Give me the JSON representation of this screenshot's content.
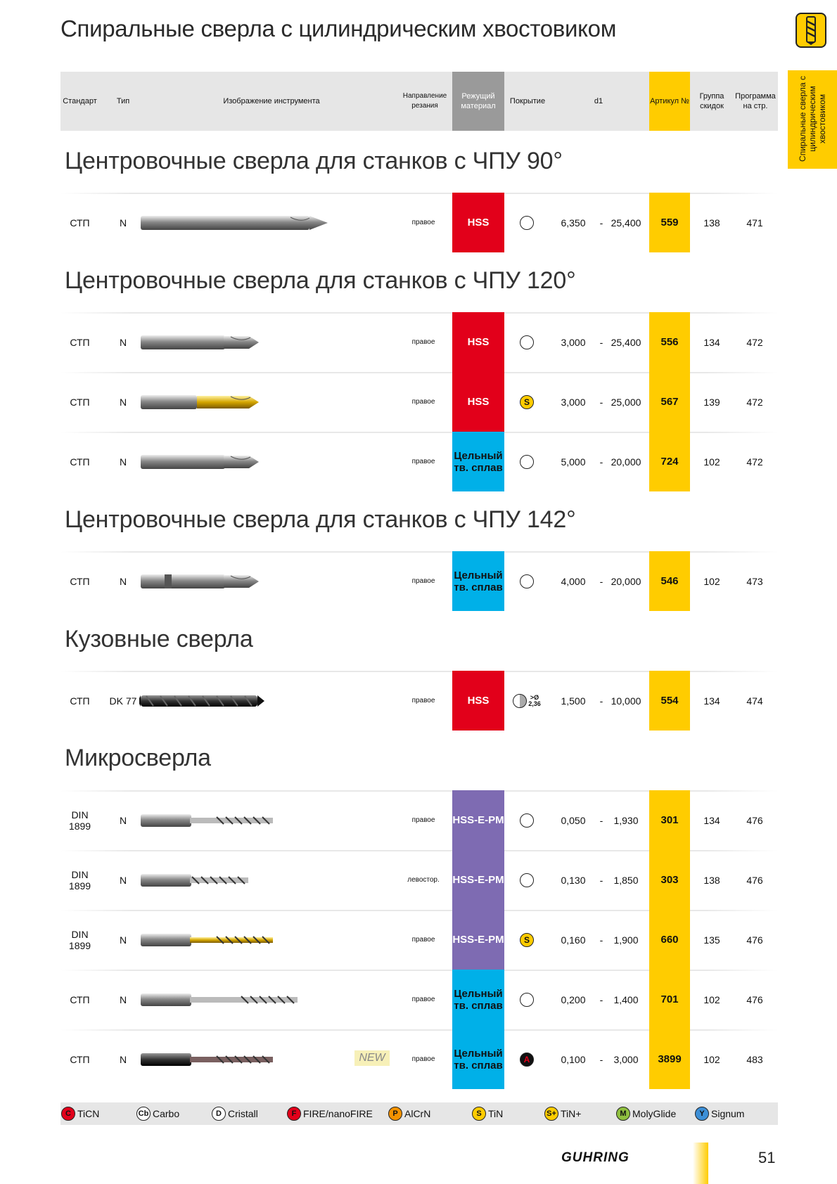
{
  "page_title": "Спиральные сверла с цилиндрическим хвостовиком",
  "side_tab": "Спиральные сверла с цилиндрическим хвостовиком",
  "header": {
    "standard": "Стандарт",
    "type": "Тип",
    "image": "Изображение инструмента",
    "direction": "Направление резания",
    "material": "Режущий материал",
    "coating": "Покрытие",
    "d1": "d1",
    "article": "Артикул №",
    "group": "Группа скидок",
    "program": "Программа на стр."
  },
  "sections": [
    {
      "title": "Центровочные сверла для станков с ЧПУ 90°",
      "rows": [
        {
          "std": "СТП",
          "type": "N",
          "dir": "правое",
          "mat": "HSS",
          "mat_color": "red",
          "coat": "none",
          "d1_from": "6,350",
          "d1_to": "25,400",
          "art": "559",
          "group": "138",
          "prog": "471",
          "tool": "spot90"
        }
      ]
    },
    {
      "title": "Центровочные сверла для станков с ЧПУ 120°",
      "rows": [
        {
          "std": "СТП",
          "type": "N",
          "dir": "правое",
          "mat": "HSS",
          "mat_color": "red",
          "coat": "none",
          "d1_from": "3,000",
          "d1_to": "25,400",
          "art": "556",
          "group": "134",
          "prog": "472",
          "tool": "spot"
        },
        {
          "std": "СТП",
          "type": "N",
          "dir": "правое",
          "mat": "HSS",
          "mat_color": "red",
          "coat": "S",
          "d1_from": "3,000",
          "d1_to": "25,000",
          "art": "567",
          "group": "139",
          "prog": "472",
          "tool": "spot-gold"
        },
        {
          "std": "СТП",
          "type": "N",
          "dir": "правое",
          "mat": "Цельный тв. сплав",
          "mat_color": "blue",
          "coat": "none",
          "d1_from": "5,000",
          "d1_to": "20,000",
          "art": "724",
          "group": "102",
          "prog": "472",
          "tool": "spot"
        }
      ]
    },
    {
      "title": "Центровочные сверла для станков с ЧПУ 142°",
      "rows": [
        {
          "std": "СТП",
          "type": "N",
          "dir": "правое",
          "mat": "Цельный тв. сплав",
          "mat_color": "blue",
          "coat": "none",
          "d1_from": "4,000",
          "d1_to": "20,000",
          "art": "546",
          "group": "102",
          "prog": "473",
          "tool": "spot-flat"
        }
      ]
    },
    {
      "title": "Кузовные сверла",
      "rows": [
        {
          "std": "СТП",
          "type": "DK 77",
          "dir": "правое",
          "mat": "HSS",
          "mat_color": "red",
          "coat": "split",
          "coat_note_1": ">Ø",
          "coat_note_2": "2,36",
          "d1_from": "1,500",
          "d1_to": "10,000",
          "art": "554",
          "group": "134",
          "prog": "474",
          "tool": "body"
        }
      ]
    },
    {
      "title": "Микросверла",
      "rows": [
        {
          "std": "DIN 1899",
          "type": "N",
          "dir": "правое",
          "mat": "HSS-E-PM",
          "mat_color": "violet",
          "coat": "none",
          "d1_from": "0,050",
          "d1_to": "1,930",
          "art": "301",
          "group": "134",
          "prog": "476",
          "tool": "micro"
        },
        {
          "std": "DIN 1899",
          "type": "N",
          "dir": "левостор.",
          "mat": "HSS-E-PM",
          "mat_color": "violet",
          "coat": "none",
          "d1_from": "0,130",
          "d1_to": "1,850",
          "art": "303",
          "group": "138",
          "prog": "476",
          "tool": "micro-short"
        },
        {
          "std": "DIN 1899",
          "type": "N",
          "dir": "правое",
          "mat": "HSS-E-PM",
          "mat_color": "violet",
          "coat": "S",
          "d1_from": "0,160",
          "d1_to": "1,900",
          "art": "660",
          "group": "135",
          "prog": "476",
          "tool": "micro-gold"
        },
        {
          "std": "СТП",
          "type": "N",
          "dir": "правое",
          "mat": "Цельный тв. сплав",
          "mat_color": "blue",
          "coat": "none",
          "d1_from": "0,200",
          "d1_to": "1,400",
          "art": "701",
          "group": "102",
          "prog": "476",
          "tool": "micro-long"
        },
        {
          "std": "СТП",
          "type": "N",
          "dir": "правое",
          "mat": "Цельный тв. сплав",
          "mat_color": "blue",
          "coat": "A",
          "d1_from": "0,100",
          "d1_to": "3,000",
          "art": "3899",
          "group": "102",
          "prog": "483",
          "tool": "micro-dark",
          "new": "NEW"
        }
      ]
    }
  ],
  "legend": [
    {
      "letter": "C",
      "label": "TiCN",
      "bg": "#e2001a",
      "fg": "#111"
    },
    {
      "letter": "Cb",
      "label": "Carbo",
      "bg": "#ffffff",
      "fg": "#111"
    },
    {
      "letter": "D",
      "label": "Cristall",
      "bg": "#ffffff",
      "fg": "#111"
    },
    {
      "letter": "F",
      "label": "FIRE/nanoFIRE",
      "bg": "#e2001a",
      "fg": "#111"
    },
    {
      "letter": "P",
      "label": "AlCrN",
      "bg": "#f39200",
      "fg": "#111"
    },
    {
      "letter": "S",
      "label": "TiN",
      "bg": "#ffcc00",
      "fg": "#111"
    },
    {
      "letter": "S+",
      "label": "TiN+",
      "bg": "#ffcc00",
      "fg": "#111"
    },
    {
      "letter": "M",
      "label": "MolyGlide",
      "bg": "#8fbf3f",
      "fg": "#111"
    },
    {
      "letter": "Y",
      "label": "Signum",
      "bg": "#3d8fd6",
      "fg": "#111"
    }
  ],
  "footer": {
    "brand": "GUHRING",
    "page": "51"
  },
  "colors": {
    "red": "#e2001a",
    "blue": "#00b0e8",
    "violet": "#7e6bb2",
    "yellow": "#ffcc00"
  }
}
